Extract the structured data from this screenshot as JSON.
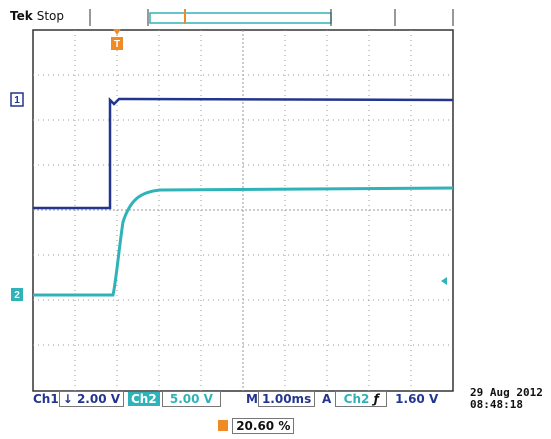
{
  "header": {
    "brand": "Tek",
    "status": "Stop"
  },
  "markers": {
    "ch1": "1",
    "ch2": "2",
    "trigger_position": "T"
  },
  "readouts": {
    "ch1_label": "Ch1",
    "ch1_coupling": "↓",
    "ch1_scale": "2.00 V",
    "ch2_label": "Ch2",
    "ch2_scale": "5.00 V",
    "timebase_label": "M",
    "timebase": "1.00ms",
    "trigger_mode": "A",
    "trigger_source": "Ch2",
    "trigger_slope": "ƒ",
    "trigger_level": "1.60 V",
    "trigger_position_percent": "20.60 %"
  },
  "timestamp": {
    "date": "29 Aug 2012",
    "time": "08:48:18"
  },
  "colors": {
    "ch1": "#23358f",
    "ch2": "#2fb3b8",
    "trigger": "#f08a24",
    "grid": "#9a9a9a",
    "frame": "#333333"
  }
}
